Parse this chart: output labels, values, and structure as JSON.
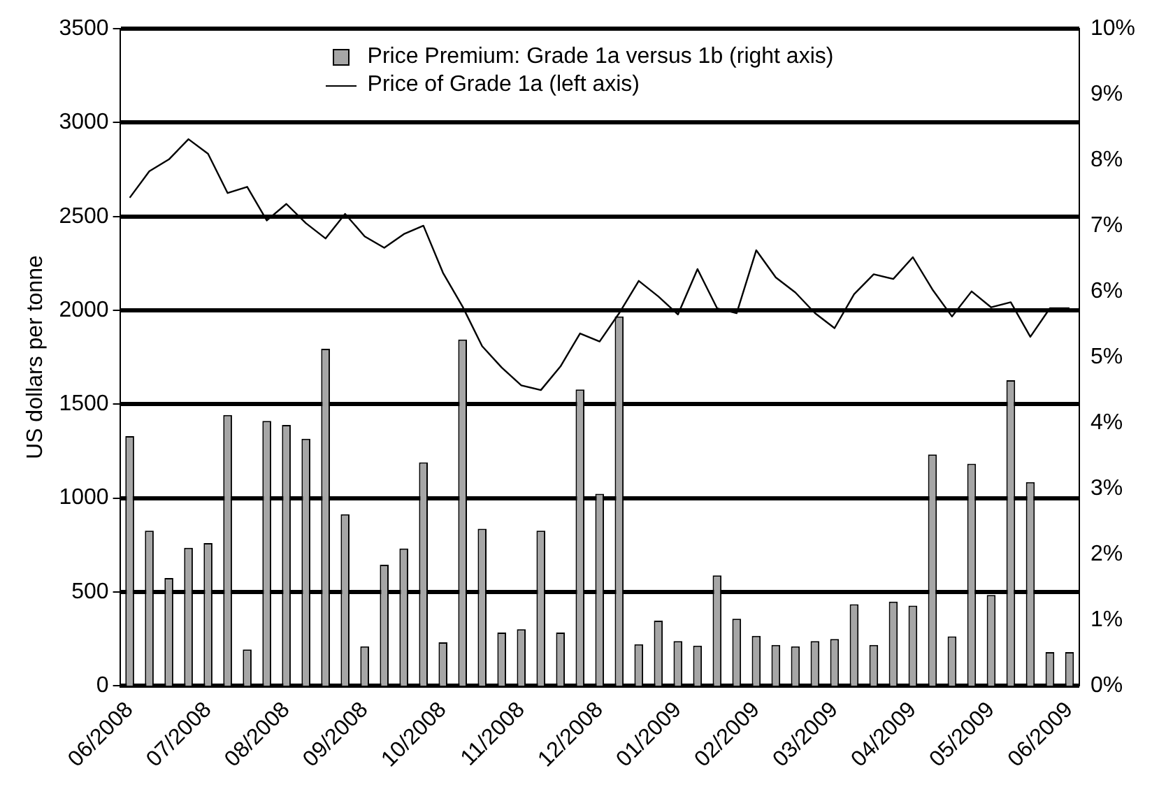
{
  "chart_data": {
    "type": "bar",
    "ylabel": "US dollars per tonne",
    "categories": [
      "06/2008",
      null,
      null,
      null,
      "07/2008",
      null,
      null,
      null,
      "08/2008",
      null,
      null,
      null,
      "09/2008",
      null,
      null,
      null,
      "10/2008",
      null,
      null,
      null,
      "11/2008",
      null,
      null,
      null,
      "12/2008",
      null,
      null,
      null,
      "01/2009",
      null,
      null,
      null,
      "02/2009",
      null,
      null,
      null,
      "03/2009",
      null,
      null,
      null,
      "04/2009",
      null,
      null,
      null,
      "05/2009",
      null,
      null,
      null,
      "06/2009"
    ],
    "series": [
      {
        "name": "Price Premium: Grade 1a versus 1b (right axis)",
        "axis": "y2",
        "color": "#a6a6a6",
        "values": [
          3.8,
          2.36,
          1.64,
          2.1,
          2.17,
          4.12,
          0.55,
          4.03,
          3.97,
          3.76,
          5.13,
          2.61,
          0.6,
          1.84,
          2.09,
          3.4,
          0.66,
          5.27,
          2.39,
          0.81,
          0.86,
          2.36,
          0.81,
          4.51,
          2.92,
          5.62,
          0.63,
          0.99,
          0.68,
          0.61,
          1.68,
          1.02,
          0.76,
          0.62,
          0.6,
          0.68,
          0.71,
          1.24,
          0.62,
          1.28,
          1.22,
          3.52,
          0.75,
          3.38,
          1.38,
          4.65,
          3.1,
          0.51,
          0.51
        ]
      },
      {
        "name": "Price of Grade 1a (left axis)",
        "type": "line",
        "axis": "y",
        "color": "#000000",
        "values": [
          2600,
          2741,
          2804,
          2912,
          2834,
          2625,
          2658,
          2479,
          2567,
          2464,
          2383,
          2514,
          2394,
          2333,
          2406,
          2451,
          2200,
          2020,
          1809,
          1695,
          1600,
          1575,
          1701,
          1877,
          1834,
          1985,
          2157,
          2074,
          1978,
          2220,
          2011,
          1985,
          2320,
          2175,
          2095,
          1985,
          1905,
          2086,
          2192,
          2167,
          2283,
          2111,
          1967,
          2101,
          2016,
          2043,
          1859,
          2011,
          2011
        ]
      }
    ],
    "ylim": [
      0,
      3500
    ],
    "yticks": [
      0,
      500,
      1000,
      1500,
      2000,
      2500,
      3000,
      3500
    ],
    "y2lim": [
      0,
      10
    ],
    "y2ticks": [
      {
        "value": 0,
        "label": "0%"
      },
      {
        "value": 1,
        "label": "1%"
      },
      {
        "value": 2,
        "label": "2%"
      },
      {
        "value": 3,
        "label": "3%"
      },
      {
        "value": 4,
        "label": "4%"
      },
      {
        "value": 5,
        "label": "5%"
      },
      {
        "value": 6,
        "label": "6%"
      },
      {
        "value": 7,
        "label": "7%"
      },
      {
        "value": 8,
        "label": "8%"
      },
      {
        "value": 9,
        "label": "9%"
      },
      {
        "value": 10,
        "label": "10%"
      }
    ],
    "grid": "y",
    "legend": "top",
    "marker": "none",
    "line_style": "solid"
  }
}
